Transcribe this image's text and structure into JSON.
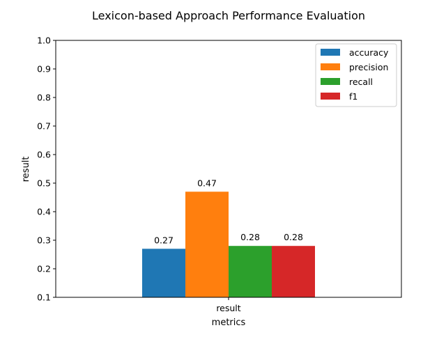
{
  "chart_data": {
    "type": "bar",
    "title": "Lexicon-based Approach Performance Evaluation",
    "xlabel": "metrics",
    "ylabel": "result",
    "categories": [
      "result"
    ],
    "ylim": [
      0.1,
      1.0
    ],
    "yticks": [
      "0.1",
      "0.2",
      "0.3",
      "0.4",
      "0.5",
      "0.6",
      "0.7",
      "0.8",
      "0.9",
      "1.0"
    ],
    "grid": false,
    "legend_position": "top-right",
    "series": [
      {
        "name": "accuracy",
        "values": [
          0.27
        ],
        "label": "0.27",
        "color": "#1f77b4"
      },
      {
        "name": "precision",
        "values": [
          0.47
        ],
        "label": "0.47",
        "color": "#ff7f0e"
      },
      {
        "name": "recall",
        "values": [
          0.28
        ],
        "label": "0.28",
        "color": "#2ca02c"
      },
      {
        "name": "f1",
        "values": [
          0.28
        ],
        "label": "0.28",
        "color": "#d62728"
      }
    ]
  }
}
